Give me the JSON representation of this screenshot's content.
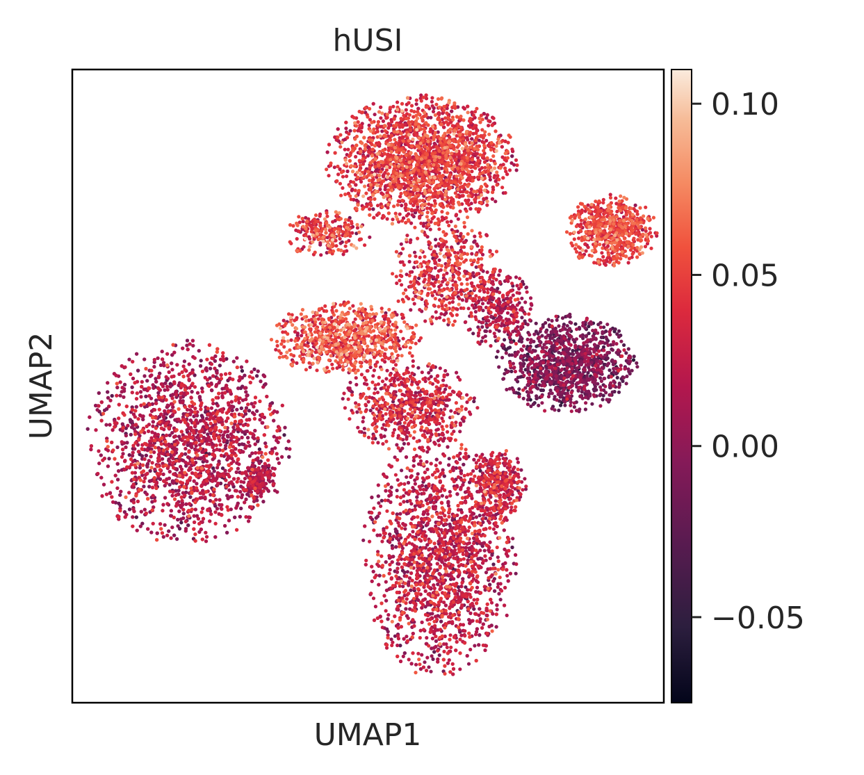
{
  "chart_data": {
    "type": "scatter",
    "title": "hUSI",
    "xlabel": "UMAP1",
    "ylabel": "UMAP2",
    "colorbar": {
      "colormap": "rocket",
      "range": [
        -0.075,
        0.11
      ],
      "ticks": [
        {
          "value": 0.1,
          "label": "0.10"
        },
        {
          "value": 0.05,
          "label": "0.05"
        },
        {
          "value": 0.0,
          "label": "0.00"
        },
        {
          "value": -0.05,
          "label": "−0.05"
        }
      ]
    },
    "xlim": [
      0,
      10
    ],
    "ylim": [
      0,
      10
    ],
    "grid": false,
    "clusters": [
      {
        "name": "top-cluster",
        "center": [
          5.9,
          8.55
        ],
        "spread": [
          1.55,
          1.0
        ],
        "n": 2600,
        "mean": 0.04,
        "sd": 0.02
      },
      {
        "name": "right-upper-cluster",
        "center": [
          9.1,
          7.45
        ],
        "spread": [
          0.75,
          0.55
        ],
        "n": 650,
        "mean": 0.048,
        "sd": 0.016
      },
      {
        "name": "right-middle-cluster",
        "center": [
          8.35,
          5.35
        ],
        "spread": [
          1.15,
          0.75
        ],
        "n": 1100,
        "mean": -0.012,
        "sd": 0.018
      },
      {
        "name": "left-cluster",
        "center": [
          1.95,
          4.1
        ],
        "spread": [
          1.65,
          1.55
        ],
        "n": 3400,
        "mean": 0.016,
        "sd": 0.02
      },
      {
        "name": "left-small-cluster",
        "center": [
          3.15,
          3.5
        ],
        "spread": [
          0.3,
          0.3
        ],
        "n": 150,
        "mean": 0.012,
        "sd": 0.015
      },
      {
        "name": "bottom-cluster",
        "center": [
          6.2,
          2.3
        ],
        "spread": [
          1.25,
          1.85
        ],
        "n": 2600,
        "mean": 0.022,
        "sd": 0.02
      },
      {
        "name": "bottom-side-cluster",
        "center": [
          7.2,
          3.45
        ],
        "spread": [
          0.45,
          0.55
        ],
        "n": 350,
        "mean": 0.028,
        "sd": 0.02
      },
      {
        "name": "center-bridge",
        "center": [
          4.6,
          5.75
        ],
        "spread": [
          1.25,
          0.55
        ],
        "n": 850,
        "mean": 0.05,
        "sd": 0.022
      },
      {
        "name": "center-lower-arm",
        "center": [
          5.7,
          4.7
        ],
        "spread": [
          1.1,
          0.7
        ],
        "n": 650,
        "mean": 0.028,
        "sd": 0.02
      },
      {
        "name": "upper-left-streak",
        "center": [
          4.3,
          7.4
        ],
        "spread": [
          0.7,
          0.35
        ],
        "n": 250,
        "mean": 0.045,
        "sd": 0.022
      },
      {
        "name": "connector-mid",
        "center": [
          6.3,
          6.8
        ],
        "spread": [
          0.9,
          0.85
        ],
        "n": 500,
        "mean": 0.035,
        "sd": 0.022
      },
      {
        "name": "connector-right",
        "center": [
          7.2,
          6.2
        ],
        "spread": [
          0.6,
          0.6
        ],
        "n": 300,
        "mean": 0.015,
        "sd": 0.02
      }
    ]
  }
}
